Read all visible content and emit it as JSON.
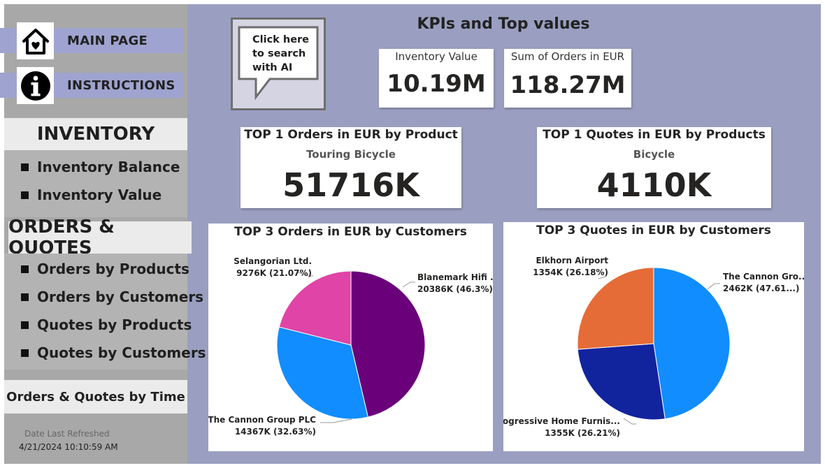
{
  "nav": {
    "main_page": "MAIN PAGE",
    "instructions": "INSTRUCTIONS"
  },
  "inventory": {
    "title": "INVENTORY",
    "items": [
      "Inventory Balance",
      "Inventory Value"
    ]
  },
  "orders_quotes": {
    "title": "ORDERS & QUOTES",
    "items": [
      "Orders by Products",
      "Orders by Customers",
      "Quotes by Products",
      "Quotes by Customers"
    ]
  },
  "time_button": "Orders & Quotes by Time",
  "refresh": {
    "label": "Date Last Refreshed",
    "value": "4/21/2024 10:10:59 AM"
  },
  "ai_button": {
    "line1": "Click here",
    "line2": "to search",
    "line3": "with AI"
  },
  "kpi_title": "KPIs and Top values",
  "kpis": {
    "inventory_value": {
      "label": "Inventory Value",
      "value": "10.19M"
    },
    "sum_orders": {
      "label": "Sum of Orders in EUR",
      "value": "118.27M"
    },
    "top_order_product": {
      "label": "TOP 1 Orders in EUR by Product",
      "product": "Touring Bicycle",
      "value": "51716K"
    },
    "top_quote_product": {
      "label": "TOP 1 Quotes in EUR by Products",
      "product": "Bicycle",
      "value": "4110K"
    }
  },
  "colors": {
    "purple": "#6b007b",
    "pink": "#e044a7",
    "blue": "#118dff",
    "navy": "#12239e",
    "orange": "#e66c37"
  },
  "chart_data": [
    {
      "type": "pie",
      "title": "TOP 3 Orders in EUR by Customers",
      "slices": [
        {
          "label": "Blanemark Hifi ...",
          "value_text": "20386K (46.3%)",
          "value": 20386,
          "percent": 46.3,
          "color": "#6b007b"
        },
        {
          "label": "The Cannon Group PLC",
          "value_text": "14367K (32.63%)",
          "value": 14367,
          "percent": 32.63,
          "color": "#118dff"
        },
        {
          "label": "Selangorian Ltd.",
          "value_text": "9276K (21.07%)",
          "value": 9276,
          "percent": 21.07,
          "color": "#e044a7"
        }
      ]
    },
    {
      "type": "pie",
      "title": "TOP 3 Quotes in EUR by Customers",
      "slices": [
        {
          "label": "The Cannon Gro...",
          "value_text": "2462K (47.61...)",
          "value": 2462,
          "percent": 47.61,
          "color": "#118dff"
        },
        {
          "label": "Progressive Home Furnis...",
          "value_text": "1355K (26.21%)",
          "value": 1355,
          "percent": 26.21,
          "color": "#12239e"
        },
        {
          "label": "Elkhorn Airport",
          "value_text": "1354K (26.18%)",
          "value": 1354,
          "percent": 26.18,
          "color": "#e66c37"
        }
      ]
    }
  ]
}
